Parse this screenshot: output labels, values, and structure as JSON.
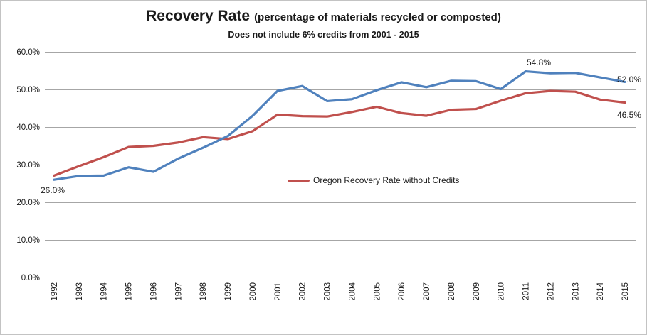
{
  "title": {
    "main": "Recovery Rate",
    "qualifier": "(percentage of materials recycled or composted)",
    "subtitle": "Does not include 6% credits from 2001 - 2015"
  },
  "legend": {
    "series_label": "Oregon Recovery Rate without Credits"
  },
  "annotations": {
    "blue_1992": "26.0%",
    "blue_2011": "54.8%",
    "blue_2015": "52.0%",
    "red_2015": "46.5%"
  },
  "colors": {
    "blue_series": "#4F81BD",
    "red_series": "#C0504D",
    "gridline": "#A6A6A6",
    "axis_line": "#808080",
    "text": "#1a1a1a"
  },
  "chart_data": {
    "type": "line",
    "x": [
      1992,
      1993,
      1994,
      1995,
      1996,
      1997,
      1998,
      1999,
      2000,
      2001,
      2002,
      2003,
      2004,
      2005,
      2006,
      2007,
      2008,
      2009,
      2010,
      2011,
      2012,
      2013,
      2014,
      2015
    ],
    "series": [
      {
        "name": "Recovery Rate",
        "color": "#4F81BD",
        "values": [
          26.0,
          27.0,
          27.1,
          29.3,
          28.1,
          31.6,
          34.5,
          37.6,
          43.0,
          49.6,
          50.9,
          46.9,
          47.4,
          49.8,
          51.9,
          50.6,
          52.3,
          52.2,
          50.1,
          54.8,
          54.3,
          54.4,
          53.2,
          52.0
        ]
      },
      {
        "name": "Oregon Recovery Rate without Credits",
        "color": "#C0504D",
        "values": [
          27.1,
          29.6,
          32.0,
          34.7,
          35.0,
          35.9,
          37.3,
          36.8,
          38.9,
          43.3,
          42.9,
          42.8,
          44.0,
          45.4,
          43.7,
          43.0,
          44.6,
          44.8,
          47.0,
          49.0,
          49.6,
          49.4,
          47.3,
          46.5
        ]
      }
    ],
    "ylim": [
      0,
      60
    ],
    "y_tick_values": [
      0,
      10,
      20,
      30,
      40,
      50,
      60
    ],
    "y_tick_labels": [
      "0.0%",
      "10.0%",
      "20.0%",
      "30.0%",
      "40.0%",
      "50.0%",
      "60.0%"
    ],
    "grid": true,
    "legend_position": "inside-center"
  }
}
